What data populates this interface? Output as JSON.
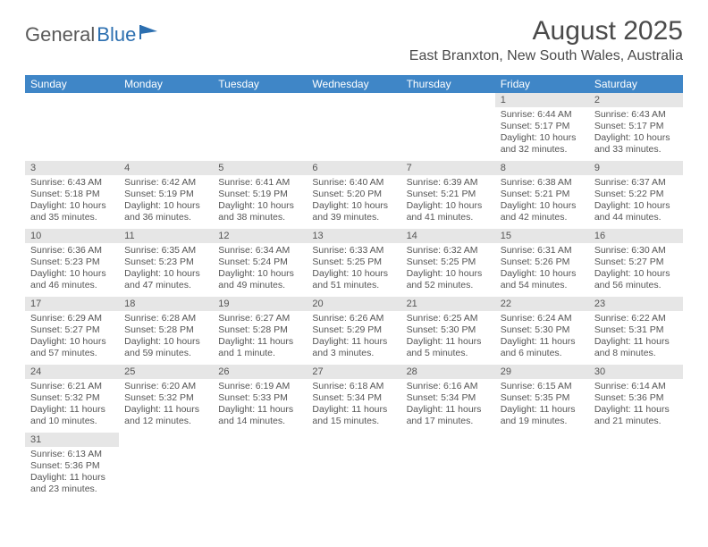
{
  "logo": {
    "text1": "General",
    "text2": "Blue"
  },
  "title": "August 2025",
  "location": "East Branxton, New South Wales, Australia",
  "colors": {
    "header_bg": "#3f86c7",
    "header_fg": "#ffffff",
    "daynum_bg": "#e6e6e6",
    "cell_border": "#3f86c7",
    "text": "#555555",
    "logo_gray": "#5a5a5a",
    "logo_blue": "#2c6fb0"
  },
  "weekdays": [
    "Sunday",
    "Monday",
    "Tuesday",
    "Wednesday",
    "Thursday",
    "Friday",
    "Saturday"
  ],
  "weeks": [
    [
      null,
      null,
      null,
      null,
      null,
      {
        "n": "1",
        "sr": "6:44 AM",
        "ss": "5:17 PM",
        "dl": "10 hours and 32 minutes."
      },
      {
        "n": "2",
        "sr": "6:43 AM",
        "ss": "5:17 PM",
        "dl": "10 hours and 33 minutes."
      }
    ],
    [
      {
        "n": "3",
        "sr": "6:43 AM",
        "ss": "5:18 PM",
        "dl": "10 hours and 35 minutes."
      },
      {
        "n": "4",
        "sr": "6:42 AM",
        "ss": "5:19 PM",
        "dl": "10 hours and 36 minutes."
      },
      {
        "n": "5",
        "sr": "6:41 AM",
        "ss": "5:19 PM",
        "dl": "10 hours and 38 minutes."
      },
      {
        "n": "6",
        "sr": "6:40 AM",
        "ss": "5:20 PM",
        "dl": "10 hours and 39 minutes."
      },
      {
        "n": "7",
        "sr": "6:39 AM",
        "ss": "5:21 PM",
        "dl": "10 hours and 41 minutes."
      },
      {
        "n": "8",
        "sr": "6:38 AM",
        "ss": "5:21 PM",
        "dl": "10 hours and 42 minutes."
      },
      {
        "n": "9",
        "sr": "6:37 AM",
        "ss": "5:22 PM",
        "dl": "10 hours and 44 minutes."
      }
    ],
    [
      {
        "n": "10",
        "sr": "6:36 AM",
        "ss": "5:23 PM",
        "dl": "10 hours and 46 minutes."
      },
      {
        "n": "11",
        "sr": "6:35 AM",
        "ss": "5:23 PM",
        "dl": "10 hours and 47 minutes."
      },
      {
        "n": "12",
        "sr": "6:34 AM",
        "ss": "5:24 PM",
        "dl": "10 hours and 49 minutes."
      },
      {
        "n": "13",
        "sr": "6:33 AM",
        "ss": "5:25 PM",
        "dl": "10 hours and 51 minutes."
      },
      {
        "n": "14",
        "sr": "6:32 AM",
        "ss": "5:25 PM",
        "dl": "10 hours and 52 minutes."
      },
      {
        "n": "15",
        "sr": "6:31 AM",
        "ss": "5:26 PM",
        "dl": "10 hours and 54 minutes."
      },
      {
        "n": "16",
        "sr": "6:30 AM",
        "ss": "5:27 PM",
        "dl": "10 hours and 56 minutes."
      }
    ],
    [
      {
        "n": "17",
        "sr": "6:29 AM",
        "ss": "5:27 PM",
        "dl": "10 hours and 57 minutes."
      },
      {
        "n": "18",
        "sr": "6:28 AM",
        "ss": "5:28 PM",
        "dl": "10 hours and 59 minutes."
      },
      {
        "n": "19",
        "sr": "6:27 AM",
        "ss": "5:28 PM",
        "dl": "11 hours and 1 minute."
      },
      {
        "n": "20",
        "sr": "6:26 AM",
        "ss": "5:29 PM",
        "dl": "11 hours and 3 minutes."
      },
      {
        "n": "21",
        "sr": "6:25 AM",
        "ss": "5:30 PM",
        "dl": "11 hours and 5 minutes."
      },
      {
        "n": "22",
        "sr": "6:24 AM",
        "ss": "5:30 PM",
        "dl": "11 hours and 6 minutes."
      },
      {
        "n": "23",
        "sr": "6:22 AM",
        "ss": "5:31 PM",
        "dl": "11 hours and 8 minutes."
      }
    ],
    [
      {
        "n": "24",
        "sr": "6:21 AM",
        "ss": "5:32 PM",
        "dl": "11 hours and 10 minutes."
      },
      {
        "n": "25",
        "sr": "6:20 AM",
        "ss": "5:32 PM",
        "dl": "11 hours and 12 minutes."
      },
      {
        "n": "26",
        "sr": "6:19 AM",
        "ss": "5:33 PM",
        "dl": "11 hours and 14 minutes."
      },
      {
        "n": "27",
        "sr": "6:18 AM",
        "ss": "5:34 PM",
        "dl": "11 hours and 15 minutes."
      },
      {
        "n": "28",
        "sr": "6:16 AM",
        "ss": "5:34 PM",
        "dl": "11 hours and 17 minutes."
      },
      {
        "n": "29",
        "sr": "6:15 AM",
        "ss": "5:35 PM",
        "dl": "11 hours and 19 minutes."
      },
      {
        "n": "30",
        "sr": "6:14 AM",
        "ss": "5:36 PM",
        "dl": "11 hours and 21 minutes."
      }
    ],
    [
      {
        "n": "31",
        "sr": "6:13 AM",
        "ss": "5:36 PM",
        "dl": "11 hours and 23 minutes."
      },
      null,
      null,
      null,
      null,
      null,
      null
    ]
  ],
  "labels": {
    "sunrise": "Sunrise:",
    "sunset": "Sunset:",
    "daylight": "Daylight:"
  }
}
